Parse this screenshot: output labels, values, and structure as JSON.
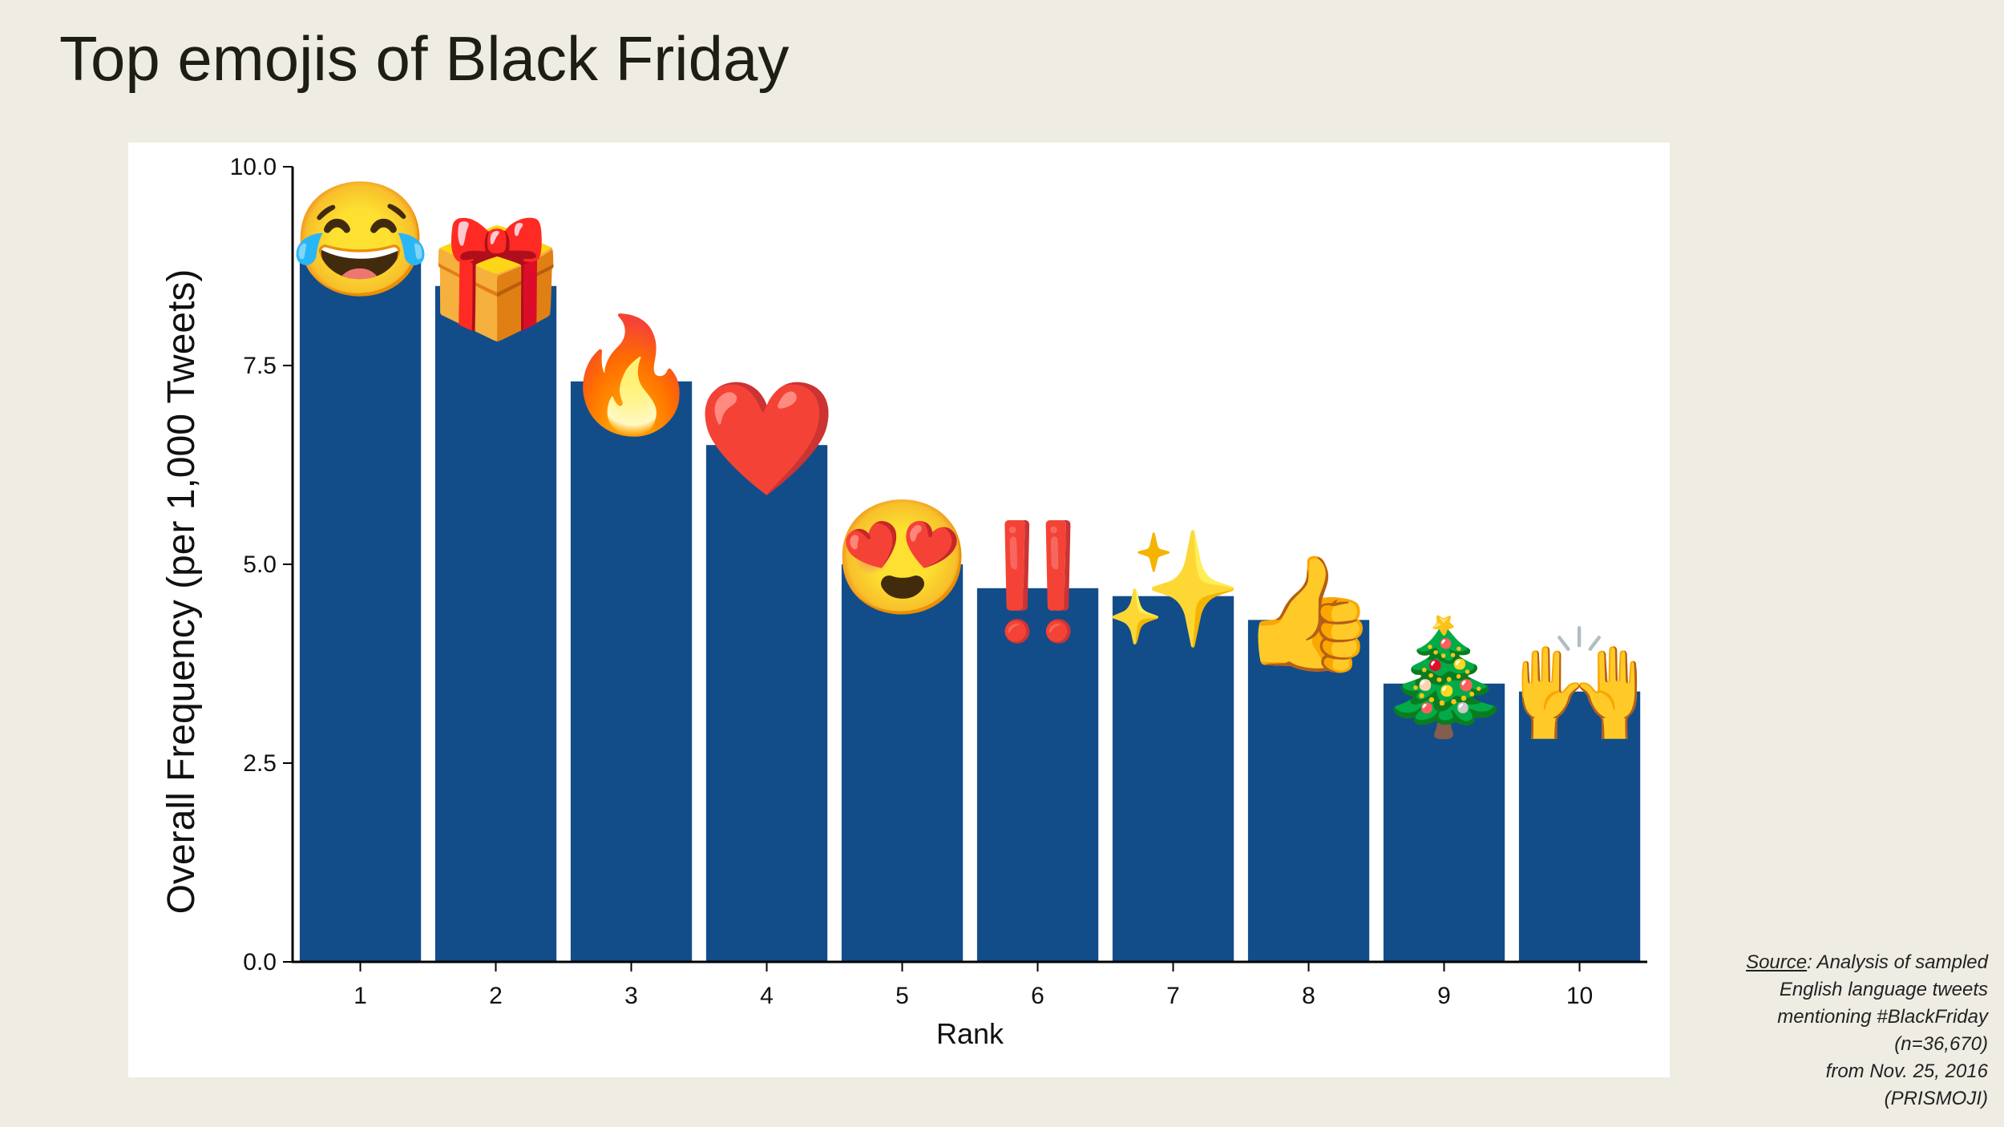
{
  "page": {
    "title": "Top emojis of Black Friday",
    "source_label": "Source",
    "source_lines": [
      ": Analysis of sampled",
      "English language tweets",
      "mentioning  #BlackFriday",
      "(n=36,670)",
      "from Nov. 25, 2016",
      "(PRISMOJI)"
    ]
  },
  "chart_data": {
    "type": "bar",
    "title": "",
    "xlabel": "Rank",
    "ylabel": "Overall Frequency (per 1,000 Tweets)",
    "categories": [
      "1",
      "2",
      "3",
      "4",
      "5",
      "6",
      "7",
      "8",
      "9",
      "10"
    ],
    "values": [
      9.0,
      8.5,
      7.3,
      6.5,
      5.0,
      4.7,
      4.6,
      4.3,
      3.5,
      3.4
    ],
    "emoji_labels": [
      "face-with-tears-of-joy-icon",
      "wrapped-gift-icon",
      "fire-icon",
      "red-heart-icon",
      "heart-eyes-icon",
      "double-exclamation-icon",
      "sparkles-icon",
      "thumbs-up-icon",
      "christmas-tree-icon",
      "raising-hands-icon"
    ],
    "emoji_glyphs": [
      "😂",
      "🎁",
      "🔥",
      "❤️",
      "😍",
      "‼️",
      "✨",
      "👍",
      "🎄",
      "🙌"
    ],
    "ylim": [
      0,
      10
    ],
    "yticks": [
      "0.0",
      "2.5",
      "5.0",
      "7.5",
      "10.0"
    ],
    "ytick_values": [
      0,
      2.5,
      5,
      7.5,
      10
    ],
    "bar_color": "#124d8a",
    "grid": false,
    "legend": "none"
  }
}
